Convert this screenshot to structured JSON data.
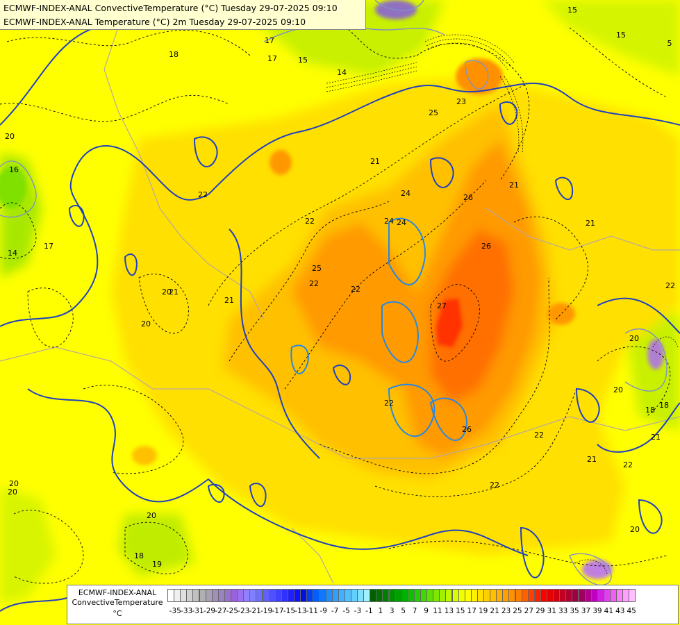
{
  "header": {
    "line1": "ECMWF-INDEX-ANAL ConvectiveTemperature (°C) Tuesday 29-07-2025 09:10",
    "line2": "ECMWF-INDEX-ANAL Temperature (°C) 2m Tuesday 29-07-2025 09:10"
  },
  "legend": {
    "model": "ECMWF-INDEX-ANAL",
    "parameter": "ConvectiveTemperature",
    "units": "°C",
    "ticks": [
      "-35",
      "-33",
      "-31",
      "-29",
      "-27",
      "-25",
      "-23",
      "-21",
      "-19",
      "-17",
      "-15",
      "-13",
      "-11",
      "-9",
      "-7",
      "-5",
      "-3",
      "-1",
      "1",
      "3",
      "5",
      "7",
      "9",
      "11",
      "13",
      "15",
      "17",
      "19",
      "21",
      "23",
      "25",
      "27",
      "29",
      "31",
      "33",
      "35",
      "37",
      "39",
      "41",
      "43",
      "45"
    ],
    "colors": [
      "#ffffff",
      "#f0f0f0",
      "#e0e0e0",
      "#d0d0d0",
      "#c0c0c0",
      "#b0b0b0",
      "#a8a0b0",
      "#a090b8",
      "#9a84c0",
      "#9a70d0",
      "#9a60e0",
      "#9a70f0",
      "#9080ff",
      "#8080ff",
      "#7070ff",
      "#6060ff",
      "#5050ff",
      "#4040ff",
      "#3030ff",
      "#2020ff",
      "#1010ff",
      "#0010e0",
      "#0040f0",
      "#0060ff",
      "#1078ff",
      "#2090ff",
      "#30a0ff",
      "#40b0ff",
      "#50c0ff",
      "#60d0ff",
      "#80e0ff",
      "#a0f0ff",
      "#006000",
      "#007000",
      "#008000",
      "#009000",
      "#00a000",
      "#00b000",
      "#10c000",
      "#20d000",
      "#40d800",
      "#60e000",
      "#80e800",
      "#a0f000",
      "#c0f800",
      "#d8fc00",
      "#f0ff00",
      "#ffff00",
      "#fff000",
      "#ffe000",
      "#ffd000",
      "#ffc000",
      "#ffb000",
      "#ffa000",
      "#ff9000",
      "#ff8000",
      "#ff6000",
      "#ff4000",
      "#ff2000",
      "#ff0000",
      "#e80000",
      "#d00010",
      "#c00020",
      "#b00030",
      "#a00040",
      "#a00060",
      "#b00090",
      "#c000c0",
      "#d020e0",
      "#e040f0",
      "#f060f0",
      "#ff80ff",
      "#ffa0ff",
      "#ffc0ff"
    ]
  },
  "map_labels": {
    "convective": [
      "20",
      "20",
      "20",
      "21",
      "21",
      "22",
      "22",
      "22",
      "23",
      "24",
      "25",
      "25",
      "26",
      "26",
      "27",
      "21",
      "22",
      "24",
      "26",
      "22",
      "21",
      "21",
      "22",
      "20",
      "20",
      "18",
      "21",
      "22",
      "22"
    ],
    "temperature": [
      "14",
      "15",
      "16",
      "17",
      "17",
      "18",
      "17",
      "19",
      "20",
      "20",
      "20",
      "18",
      "15",
      "14",
      "15",
      "5",
      "18",
      "20",
      "24",
      "22",
      "21"
    ]
  }
}
